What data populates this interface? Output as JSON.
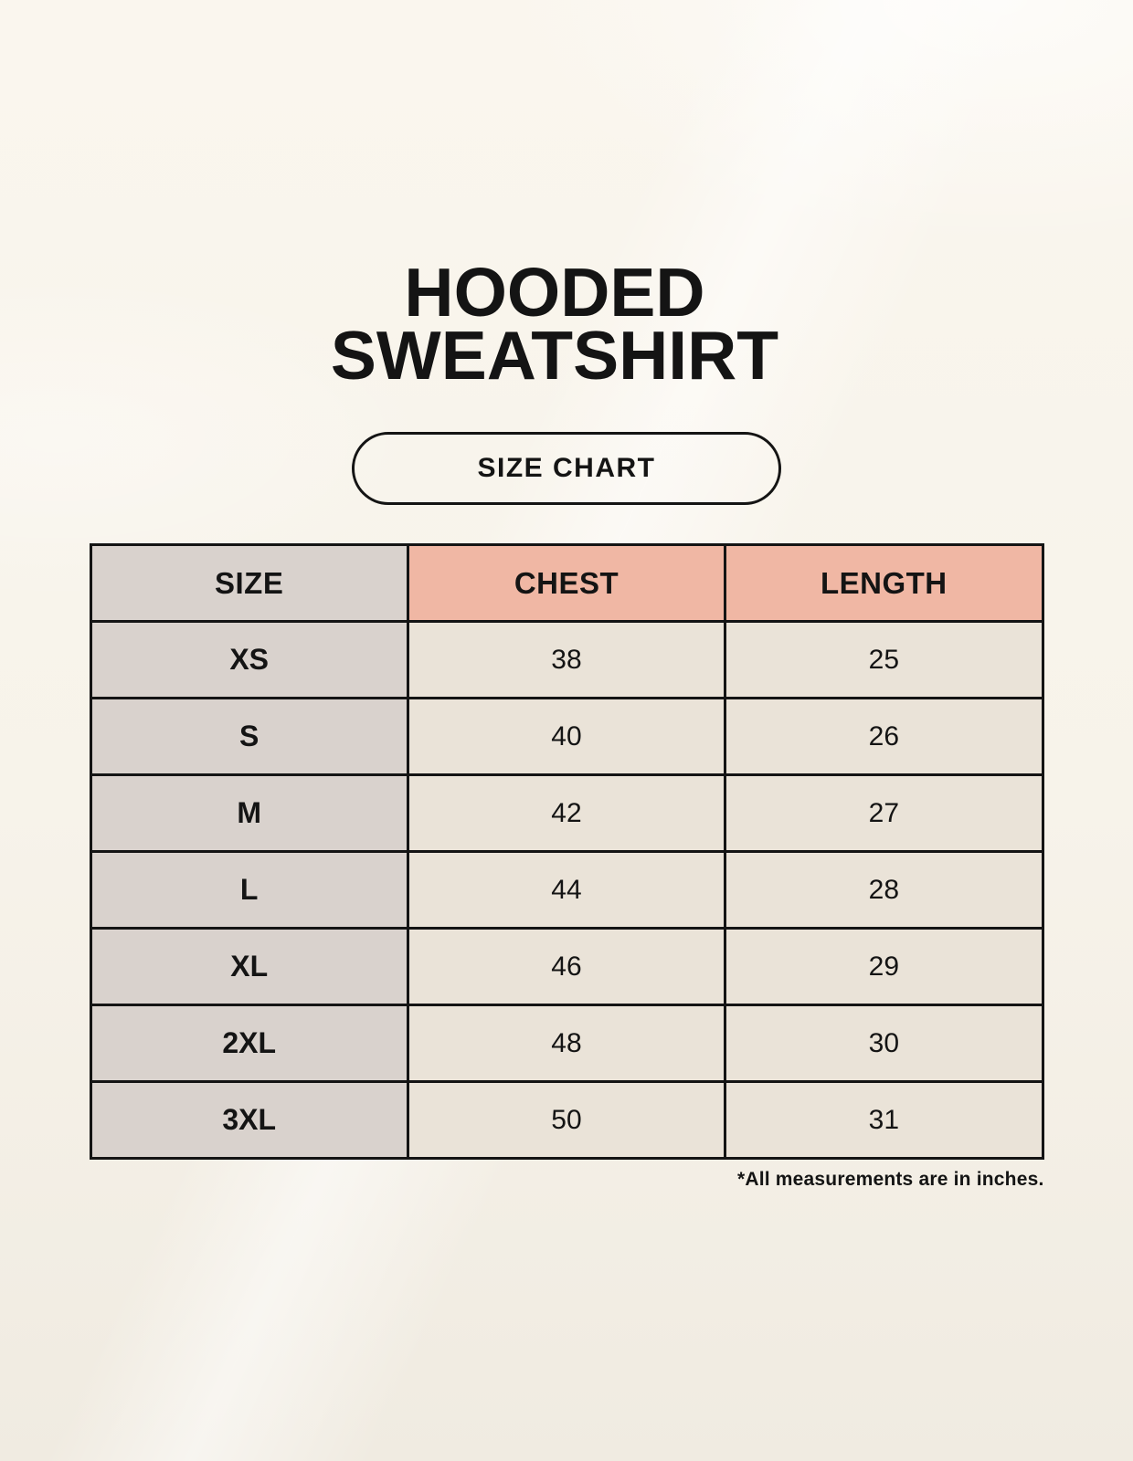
{
  "header": {
    "title_line1": "HOODED",
    "title_line2": "SWEATSHIRT",
    "size_chart_button": "SIZE CHART"
  },
  "footnote": "*All measurements are in inches.",
  "colors": {
    "page_background": "#f7f3ea",
    "header_row_accent": "#f0b7a4",
    "size_column_background": "#d9d2cd",
    "data_cell_background": "#eae3d8",
    "table_border": "#141414",
    "text": "#141414"
  },
  "chart_data": {
    "type": "table",
    "title": "HOODED SWEATSHIRT",
    "subtitle": "SIZE CHART",
    "columns": [
      "SIZE",
      "CHEST",
      "LENGTH"
    ],
    "rows": [
      [
        "XS",
        "38",
        "25"
      ],
      [
        "S",
        "40",
        "26"
      ],
      [
        "M",
        "42",
        "27"
      ],
      [
        "L",
        "44",
        "28"
      ],
      [
        "XL",
        "46",
        "29"
      ],
      [
        "2XL",
        "48",
        "30"
      ],
      [
        "3XL",
        "50",
        "31"
      ]
    ],
    "units": "inches",
    "note": "*All measurements are in inches."
  }
}
